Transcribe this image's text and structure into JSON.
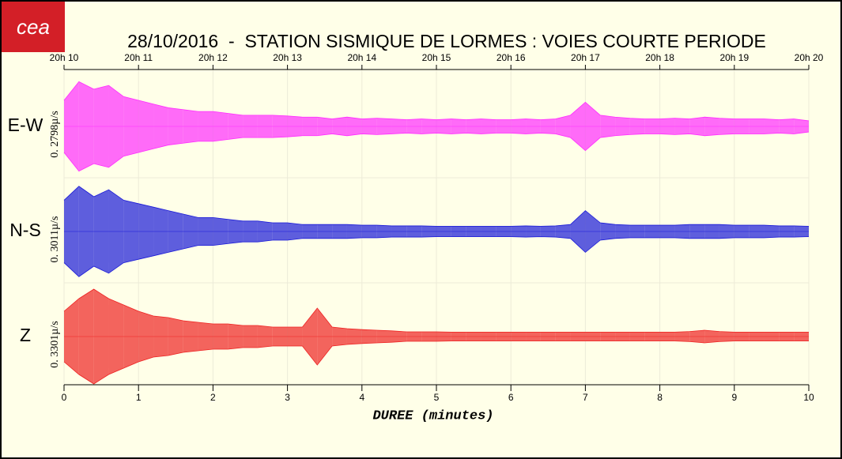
{
  "chart_data": {
    "type": "seismogram",
    "logo": "cea",
    "title": "28/10/2016  -  STATION SISMIQUE DE LORMES : VOIES COURTE PERIODE",
    "xlabel": "DUREE (minutes)",
    "xlim": [
      0,
      10
    ],
    "xticks": [
      0,
      1,
      2,
      3,
      4,
      5,
      6,
      7,
      8,
      9,
      10
    ],
    "top_xticks": [
      {
        "value": 0,
        "label": "20h 10"
      },
      {
        "value": 1,
        "label": "20h 11"
      },
      {
        "value": 2,
        "label": "20h 12"
      },
      {
        "value": 3,
        "label": "20h 13"
      },
      {
        "value": 4,
        "label": "20h 14"
      },
      {
        "value": 5,
        "label": "20h 15"
      },
      {
        "value": 6,
        "label": "20h 16"
      },
      {
        "value": 7,
        "label": "20h 17"
      },
      {
        "value": 8,
        "label": "20h 18"
      },
      {
        "value": 9,
        "label": "20h 19"
      },
      {
        "value": 10,
        "label": "20h 20"
      }
    ],
    "grid": true,
    "x": [
      0,
      0.2,
      0.4,
      0.6,
      0.8,
      1,
      1.2,
      1.4,
      1.6,
      1.8,
      2,
      2.2,
      2.4,
      2.6,
      2.8,
      3,
      3.2,
      3.4,
      3.6,
      3.8,
      4,
      4.2,
      4.4,
      4.6,
      4.8,
      5,
      5.2,
      5.4,
      5.6,
      5.8,
      6,
      6.2,
      6.4,
      6.6,
      6.8,
      7,
      7.2,
      7.4,
      7.6,
      7.8,
      8,
      8.2,
      8.4,
      8.6,
      8.8,
      9,
      9.2,
      9.4,
      9.6,
      9.8,
      10
    ],
    "series": [
      {
        "name": "E-W",
        "scale_label": "0. 2798µ/s",
        "color": "#ff2cff",
        "ylim": [
          -0.14,
          0.14
        ],
        "values": [
          0.07,
          0.12,
          0.1,
          0.11,
          0.08,
          0.07,
          0.06,
          0.05,
          0.045,
          0.04,
          0.04,
          0.035,
          0.03,
          0.03,
          0.03,
          0.028,
          0.025,
          0.025,
          0.02,
          0.025,
          0.02,
          0.022,
          0.02,
          0.018,
          0.02,
          0.018,
          0.02,
          0.018,
          0.02,
          0.018,
          0.018,
          0.02,
          0.018,
          0.02,
          0.03,
          0.065,
          0.03,
          0.025,
          0.022,
          0.02,
          0.02,
          0.022,
          0.02,
          0.025,
          0.022,
          0.02,
          0.02,
          0.02,
          0.018,
          0.02,
          0.015
        ]
      },
      {
        "name": "N-S",
        "scale_label": "0. 3011µ/s",
        "color": "#1a1ad8",
        "ylim": [
          -0.15,
          0.15
        ],
        "values": [
          0.09,
          0.13,
          0.1,
          0.12,
          0.09,
          0.08,
          0.07,
          0.06,
          0.05,
          0.04,
          0.04,
          0.035,
          0.03,
          0.03,
          0.025,
          0.025,
          0.02,
          0.02,
          0.02,
          0.02,
          0.018,
          0.018,
          0.016,
          0.016,
          0.016,
          0.015,
          0.015,
          0.015,
          0.015,
          0.015,
          0.015,
          0.016,
          0.015,
          0.016,
          0.02,
          0.06,
          0.025,
          0.02,
          0.018,
          0.018,
          0.018,
          0.018,
          0.02,
          0.02,
          0.02,
          0.018,
          0.018,
          0.018,
          0.016,
          0.016,
          0.015
        ]
      },
      {
        "name": "Z",
        "scale_label": "0. 3301µ/s",
        "color": "#ee2222",
        "ylim": [
          -0.165,
          0.165
        ],
        "values": [
          0.08,
          0.12,
          0.15,
          0.12,
          0.1,
          0.08,
          0.065,
          0.06,
          0.05,
          0.045,
          0.04,
          0.04,
          0.035,
          0.035,
          0.03,
          0.03,
          0.03,
          0.09,
          0.03,
          0.025,
          0.022,
          0.02,
          0.018,
          0.015,
          0.015,
          0.015,
          0.014,
          0.014,
          0.014,
          0.014,
          0.014,
          0.014,
          0.014,
          0.014,
          0.014,
          0.014,
          0.014,
          0.014,
          0.014,
          0.014,
          0.014,
          0.014,
          0.016,
          0.02,
          0.016,
          0.014,
          0.014,
          0.014,
          0.014,
          0.014,
          0.014
        ]
      }
    ]
  }
}
